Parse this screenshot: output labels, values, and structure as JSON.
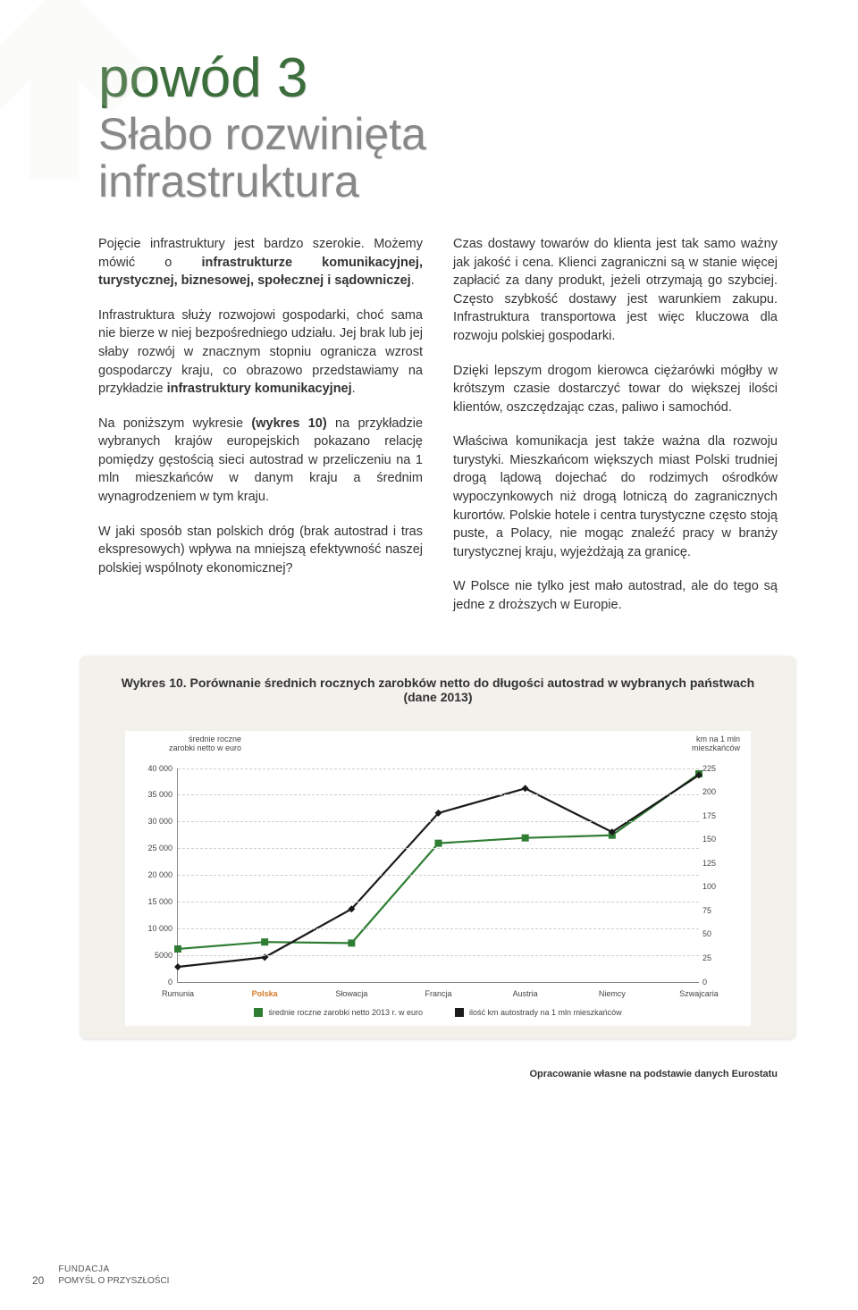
{
  "title_small": "powód 3",
  "title_main_line1": "Słabo rozwinięta",
  "title_main_line2": "infrastruktura",
  "col_left": {
    "p1_a": "Pojęcie infrastruktury jest bardzo szerokie. Możemy mówić o ",
    "p1_b": "infrastrukturze komunikacyjnej, turystycznej, biznesowej, społecznej i sądowniczej",
    "p1_c": ".",
    "p2_a": "Infrastruktura służy rozwojowi gospodarki, choć sama nie bierze w niej bezpośredniego udziału. Jej brak lub jej słaby rozwój w znacznym stopniu ogranicza wzrost gospodarczy kraju, co obrazowo przedstawiamy na przykładzie ",
    "p2_b": "infrastruktury komunikacyjnej",
    "p2_c": ".",
    "p3_a": "Na poniższym wykresie ",
    "p3_b": "(wykres 10)",
    "p3_c": " na przykładzie wybranych krajów europejskich pokazano relację pomiędzy gęstością sieci autostrad w przeliczeniu na 1 mln mieszkańców w danym kraju a średnim wynagrodzeniem w tym kraju.",
    "p4": "W jaki sposób stan polskich dróg (brak autostrad i tras ekspresowych) wpływa na mniejszą efektywność naszej polskiej wspólnoty ekonomicznej?"
  },
  "col_right": {
    "p1": "Czas dostawy towarów do klienta jest tak samo ważny jak jakość i cena. Klienci zagraniczni są w stanie więcej zapłacić za dany produkt, jeżeli otrzymają go szybciej. Często szybkość dostawy jest warunkiem zakupu. Infrastruktura transportowa jest więc kluczowa dla rozwoju polskiej gospodarki.",
    "p2": "Dzięki lepszym drogom kierowca ciężarówki mógłby w krótszym czasie dostarczyć towar do większej ilości klientów, oszczędzając czas, paliwo i samochód.",
    "p3": "Właściwa komunikacja jest także ważna dla rozwoju turystyki. Mieszkańcom większych miast Polski trudniej drogą lądową dojechać do rodzimych ośrodków wypoczynkowych niż drogą lotniczą do zagranicznych kurortów. Polskie hotele i centra turystyczne często stoją puste, a Polacy, nie mogąc znaleźć pracy w branży turystycznej kraju, wyjeżdżają za granicę.",
    "p4": "W Polsce nie tylko jest mało autostrad, ale do tego są jedne z droższych w Europie."
  },
  "chart": {
    "title": "Wykres 10. Porównanie średnich rocznych zarobków netto do długości autostrad w wybranych państwach (dane 2013)",
    "left_axis_label": "średnie roczne\nzarobki netto w euro",
    "right_axis_label": "km na 1 mln\nmieszkańców",
    "categories": [
      "Rumunia",
      "Polska",
      "Słowacja",
      "Francja",
      "Austria",
      "Niemcy",
      "Szwajcaria"
    ],
    "highlight_index": 1,
    "left_values": [
      6200,
      7500,
      7300,
      26000,
      27000,
      27500,
      39000
    ],
    "right_values": [
      16,
      26,
      77,
      178,
      204,
      158,
      218
    ],
    "left_axis": {
      "min": 0,
      "max": 40000,
      "step": 5000
    },
    "right_axis": {
      "min": 0,
      "max": 225,
      "step": 25
    },
    "series": [
      {
        "name": "średnie roczne zarobki netto 2013 r. w euro",
        "color": "#2e7d32",
        "marker": "square"
      },
      {
        "name": "ilość km autostrady na 1 mln mieszkańców",
        "color": "#1a1a1a",
        "marker": "diamond"
      }
    ],
    "grid_color": "#cfcfcf",
    "background": "#ffffff",
    "panel_background": "#f3f1ec",
    "line_width": 2.2,
    "marker_size": 4
  },
  "source": "Opracowanie własne na podstawie danych Eurostatu",
  "footer": {
    "page": "20",
    "org_line1": "FUNDACJA",
    "org_line2": "POMYŚL O PRZYSZŁOŚCI"
  },
  "arrow_color": "#d9d7d1"
}
